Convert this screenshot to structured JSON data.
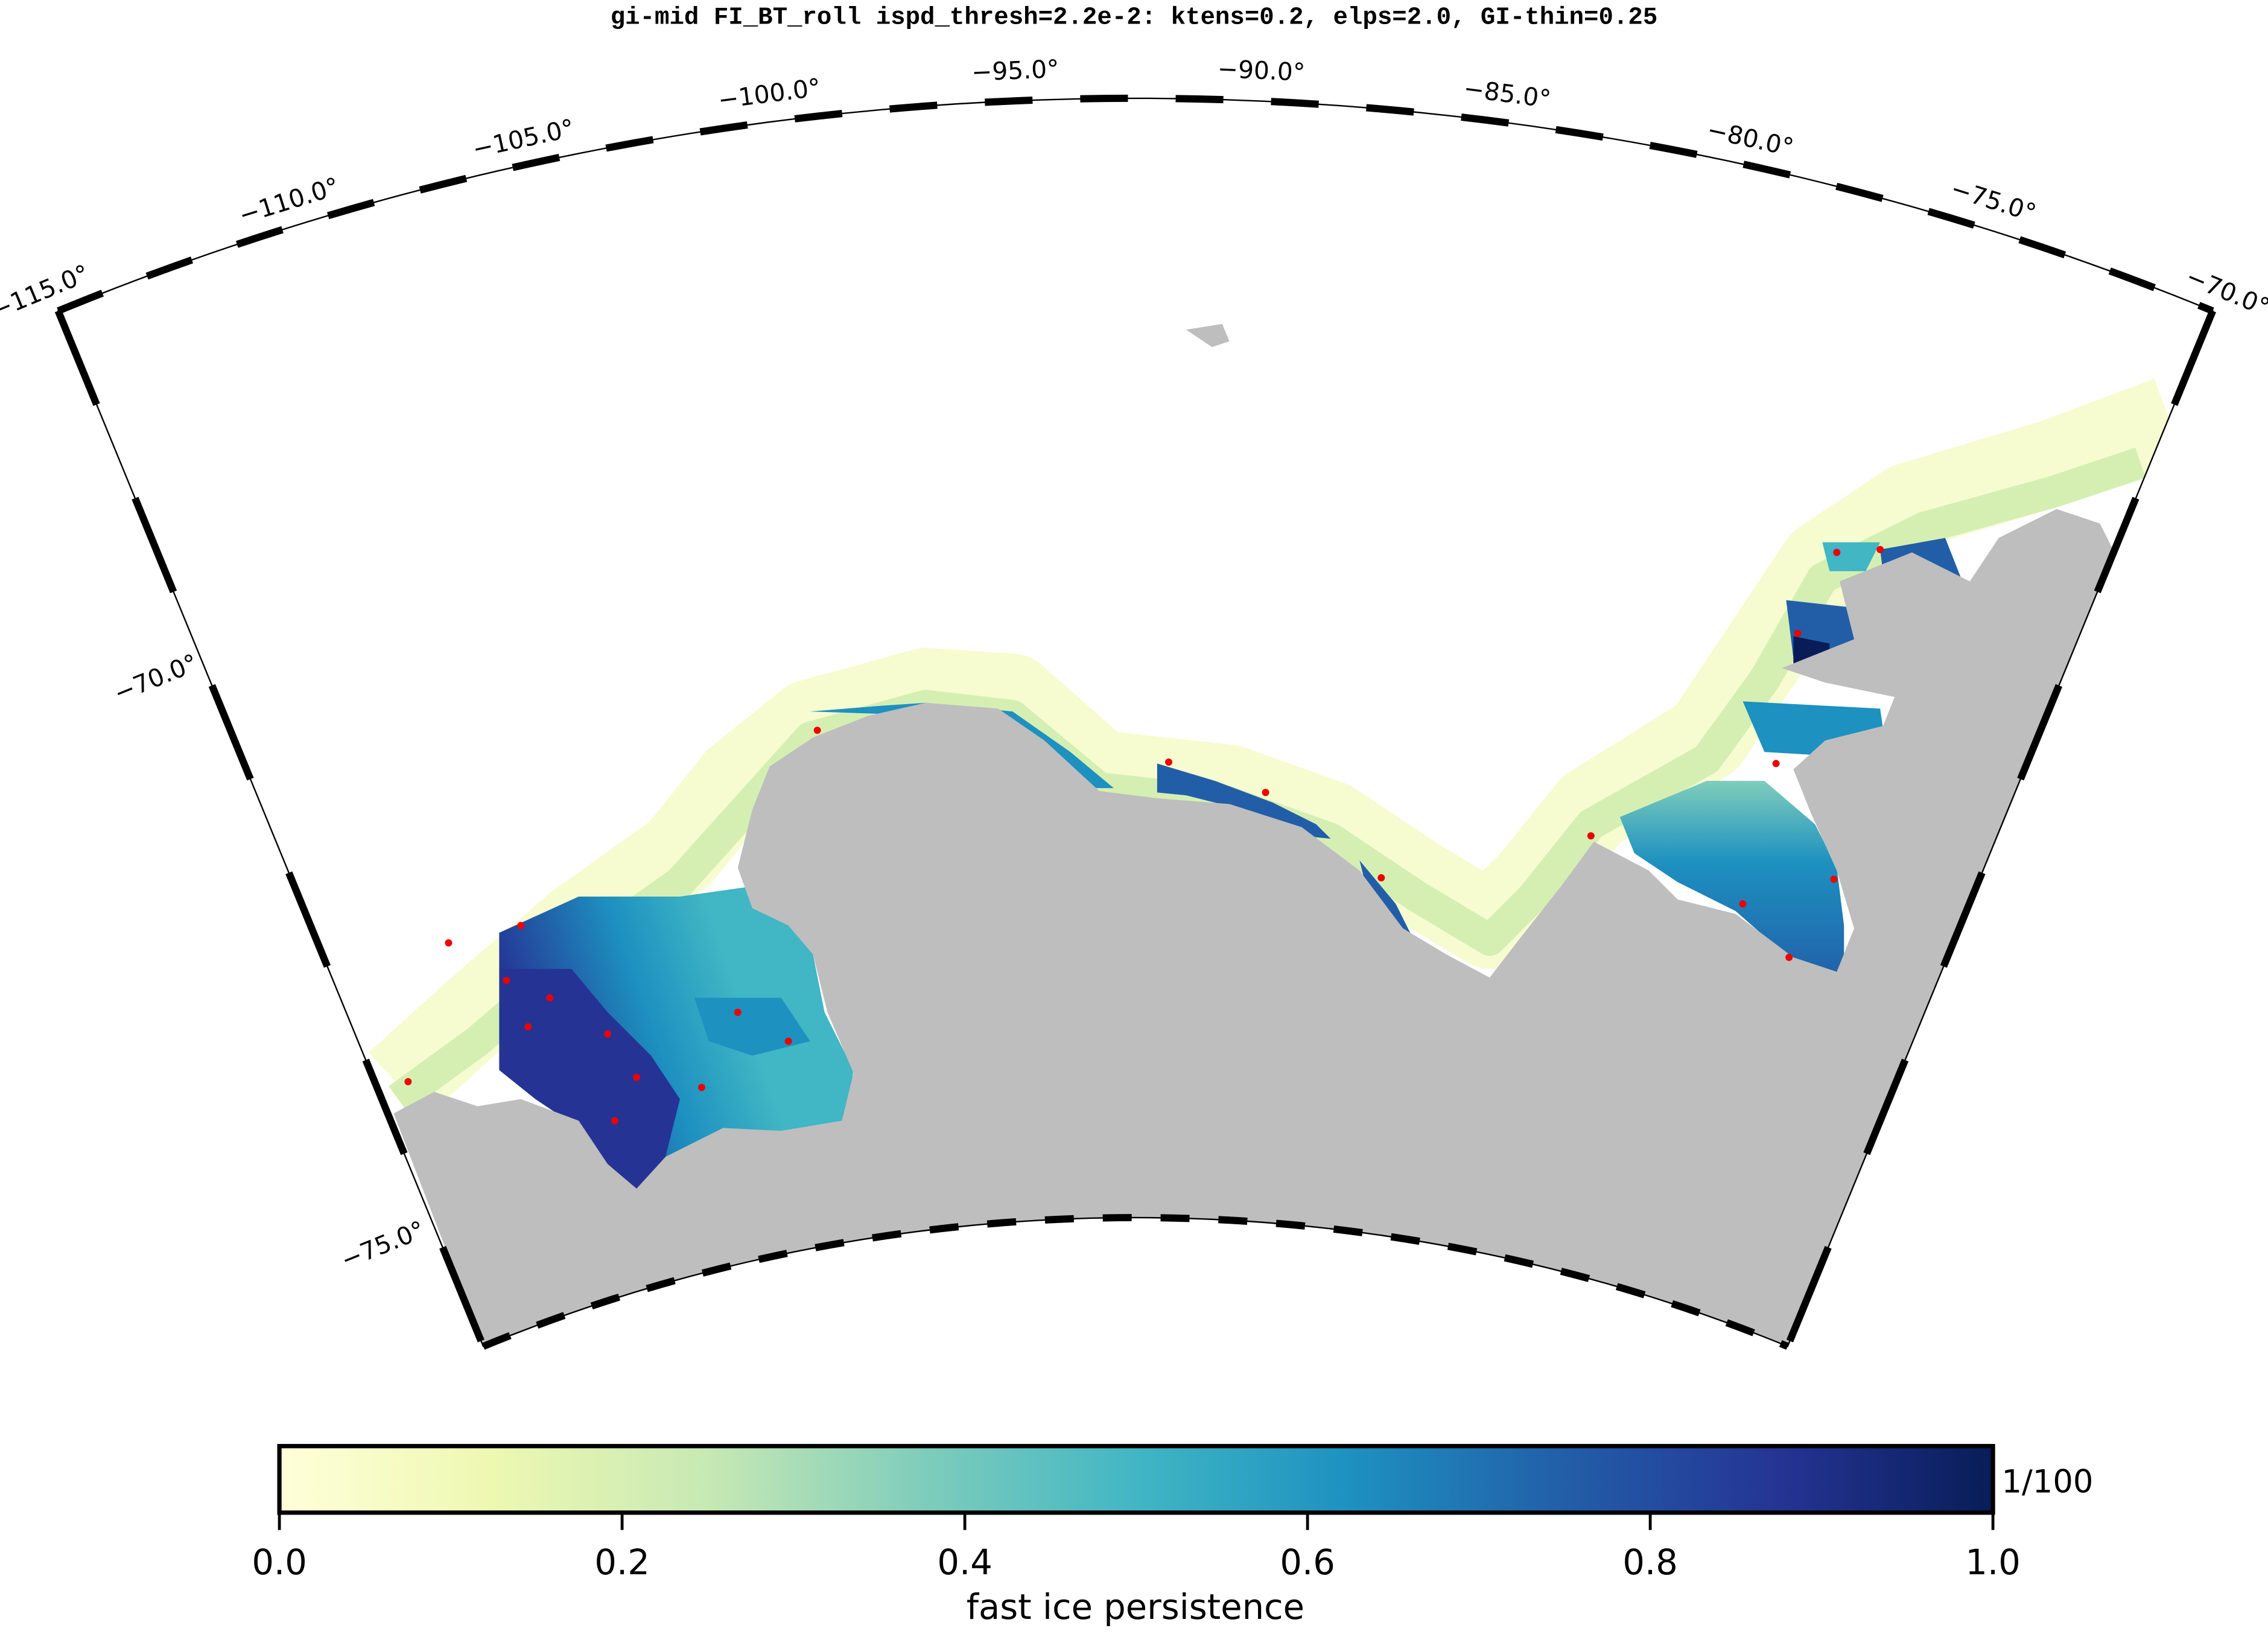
{
  "title": "gi-mid FI_BT_roll ispd_thresh=2.2e-2: ktens=0.2, elps=2.0, GI-thin=0.25",
  "map": {
    "lon_labels": [
      "−115.0°",
      "−110.0°",
      "−105.0°",
      "−100.0°",
      "−95.0°",
      "−90.0°",
      "−85.0°",
      "−80.0°",
      "−75.0°",
      "−70.0°"
    ],
    "lat_labels": [
      "−70.0°",
      "−75.0°"
    ]
  },
  "colorbar": {
    "label": "fast ice persistence",
    "unit_label": "1/100",
    "lim": [
      0,
      1
    ],
    "ticks": [
      {
        "value": 0,
        "label": "0.0"
      },
      {
        "value": 0.2,
        "label": "0.2"
      },
      {
        "value": 0.4,
        "label": "0.4"
      },
      {
        "value": 0.6,
        "label": "0.6"
      },
      {
        "value": 0.8,
        "label": "0.8"
      },
      {
        "value": 1,
        "label": "1.0"
      }
    ]
  }
}
